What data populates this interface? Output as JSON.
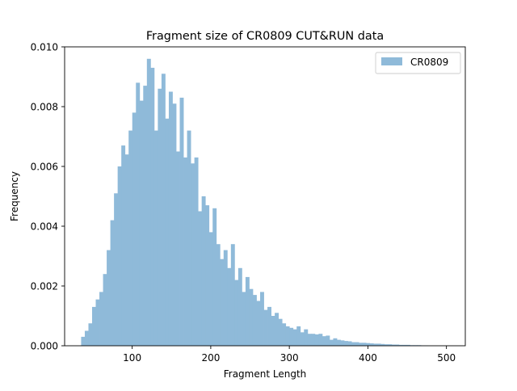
{
  "chart_data": {
    "type": "bar",
    "title": "Fragment size of CR0809 CUT&RUN data",
    "xlabel": "Fragment Length",
    "ylabel": "Frequency",
    "xlim": [
      14,
      524
    ],
    "ylim": [
      0,
      0.01
    ],
    "xticks": [
      100,
      200,
      300,
      400,
      500
    ],
    "xtick_labels": [
      "100",
      "200",
      "300",
      "400",
      "500"
    ],
    "yticks": [
      0,
      0.002,
      0.004,
      0.006,
      0.008,
      0.01
    ],
    "ytick_labels": [
      "0.000",
      "0.002",
      "0.004",
      "0.006",
      "0.008",
      "0.010"
    ],
    "legend": {
      "position": "top-right",
      "entries": [
        "CR0809"
      ]
    },
    "grid": false,
    "series": [
      {
        "name": "CR0809",
        "color": "#8fbad9",
        "bin_start": 35,
        "bin_width": 4.65,
        "values": [
          0.0003,
          0.0005,
          0.00075,
          0.0013,
          0.00155,
          0.0018,
          0.0024,
          0.0032,
          0.0042,
          0.0051,
          0.006,
          0.0067,
          0.0064,
          0.0072,
          0.0078,
          0.0088,
          0.0082,
          0.0087,
          0.0096,
          0.0093,
          0.0072,
          0.0086,
          0.0091,
          0.0076,
          0.0085,
          0.0081,
          0.0065,
          0.0083,
          0.0063,
          0.0072,
          0.0061,
          0.0063,
          0.0045,
          0.005,
          0.0047,
          0.0038,
          0.0046,
          0.0034,
          0.0029,
          0.0032,
          0.0026,
          0.0034,
          0.0022,
          0.0026,
          0.0018,
          0.0023,
          0.0019,
          0.0017,
          0.0015,
          0.0018,
          0.0012,
          0.0013,
          0.001,
          0.0011,
          0.0009,
          0.00075,
          0.00065,
          0.0006,
          0.00055,
          0.00065,
          0.00045,
          0.00055,
          0.0004,
          0.0004,
          0.00038,
          0.0004,
          0.00032,
          0.00034,
          0.0002,
          0.00025,
          0.0002,
          0.00018,
          0.00016,
          0.00015,
          0.00012,
          0.00012,
          0.0001,
          0.0001,
          9e-05,
          8e-05,
          7e-05,
          7e-05,
          6e-05,
          5e-05,
          5e-05,
          4e-05,
          4e-05,
          3e-05,
          3e-05,
          3e-05,
          2e-05,
          2e-05,
          2e-05,
          1e-05,
          1e-05
        ]
      }
    ]
  }
}
